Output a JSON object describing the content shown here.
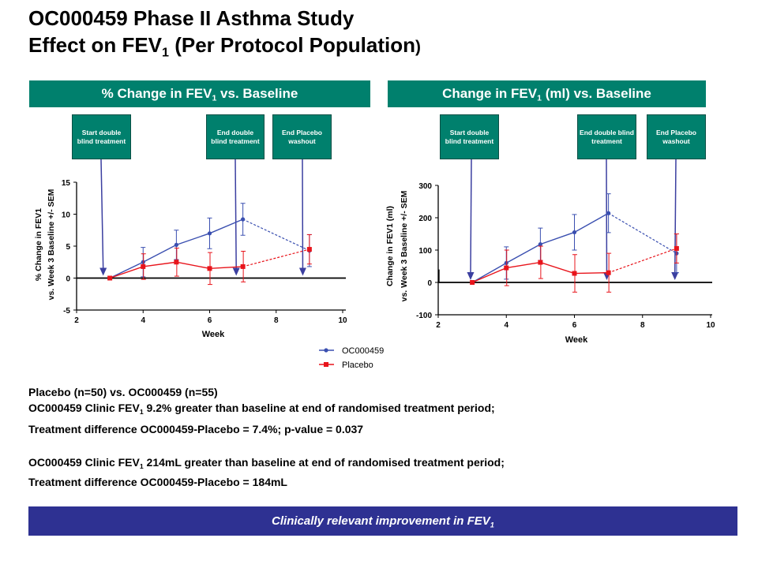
{
  "title": {
    "line1": "OC000459 Phase II Asthma Study",
    "line2_pre": "Effect on FEV",
    "line2_sub": "1",
    "line2_post": " (Per Protocol Population",
    "line2_end": ")"
  },
  "headers": {
    "left_pre": "% Change in FEV",
    "left_sub": "1",
    "left_post": " vs. Baseline",
    "right_pre": "Change in FEV",
    "right_sub": "1",
    "right_post": " (ml) vs. Baseline"
  },
  "callouts": {
    "start": "Start double blind treatment",
    "end_db": "End double blind treatment",
    "end_placebo": "End Placebo washout"
  },
  "legend": {
    "oc": "OC000459",
    "placebo": "Placebo"
  },
  "colors": {
    "oc": "#3a4fb0",
    "placebo": "#e8141b",
    "header": "#00806d",
    "banner": "#2e3192",
    "arrow": "#3b3fa0"
  },
  "notes": {
    "line1": "Placebo (n=50) vs. OC000459 (n=55)",
    "line2_pre": "OC000459 Clinic FEV",
    "line2_sub": "1",
    "line2_post": " 9.2% greater than baseline at end of randomised treatment period;",
    "line3": "Treatment difference OC000459-Placebo = 7.4%; p-value = 0.037",
    "line4_pre": "OC000459 Clinic FEV",
    "line4_sub": "1",
    "line4_post": " 214mL greater than baseline at end of randomised treatment period;",
    "line5": "Treatment difference OC000459-Placebo = 184mL"
  },
  "banner": {
    "pre": "Clinically relevant improvement in FEV",
    "sub": "1"
  },
  "chart_data": [
    {
      "type": "line",
      "xlabel": "Week",
      "ylabel_line1": "% Change in FEV1",
      "ylabel_line2": "vs. Week 3 Baseline +/- SEM",
      "xlim": [
        2,
        10
      ],
      "ylim": [
        -5,
        15
      ],
      "xticks": [
        2,
        4,
        6,
        8,
        10
      ],
      "yticks": [
        -5,
        0,
        5,
        10,
        15
      ],
      "ytick_labels": [
        "-5",
        "0",
        "5",
        "10",
        "15"
      ],
      "series": [
        {
          "name": "OC000459",
          "x": [
            3,
            4,
            5,
            6,
            7
          ],
          "values": [
            0,
            2.5,
            5.2,
            7.0,
            9.2
          ],
          "err": [
            0,
            2.3,
            2.3,
            2.4,
            2.5
          ],
          "x_dashed": [
            7,
            9
          ],
          "values_dashed": [
            9.2,
            4.3
          ],
          "err_end": 2.5
        },
        {
          "name": "Placebo",
          "x": [
            3,
            4,
            5,
            6,
            7
          ],
          "values": [
            0,
            1.8,
            2.5,
            1.5,
            1.8
          ],
          "err": [
            0,
            2.0,
            2.2,
            2.5,
            2.4
          ],
          "x_dashed": [
            7,
            9
          ],
          "values_dashed": [
            1.8,
            4.5
          ],
          "err_end": 2.3
        }
      ],
      "arrows_at_week": [
        2.8,
        6.8,
        8.8
      ]
    },
    {
      "type": "line",
      "xlabel": "Week",
      "ylabel_line1": "Change in FEV1 (ml)",
      "ylabel_line2": "vs. Week 3 Baseline +/- SEM",
      "xlim": [
        2,
        10
      ],
      "ylim": [
        -100,
        300
      ],
      "xticks": [
        2,
        4,
        6,
        8,
        10
      ],
      "yticks": [
        -100,
        0,
        100,
        200,
        300
      ],
      "ytick_labels": [
        "-100",
        "0",
        "100",
        "200",
        "300"
      ],
      "series": [
        {
          "name": "OC000459",
          "x": [
            3,
            4,
            5,
            6,
            7
          ],
          "values": [
            0,
            60,
            118,
            155,
            214
          ],
          "err": [
            0,
            50,
            50,
            55,
            60
          ],
          "x_dashed": [
            7,
            9
          ],
          "values_dashed": [
            214,
            90
          ],
          "err_end": 60
        },
        {
          "name": "Placebo",
          "x": [
            3,
            4,
            5,
            6,
            7
          ],
          "values": [
            0,
            45,
            62,
            28,
            30
          ],
          "err": [
            0,
            55,
            50,
            58,
            60
          ],
          "x_dashed": [
            7,
            9
          ],
          "values_dashed": [
            30,
            105
          ],
          "err_end": 45
        }
      ],
      "arrows_at_week": [
        2.95,
        6.95,
        8.95
      ]
    }
  ]
}
